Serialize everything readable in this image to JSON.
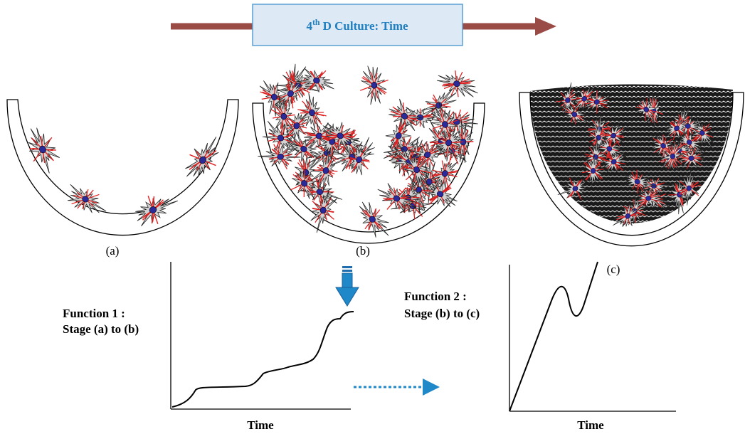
{
  "banner": {
    "lead": "4",
    "superscript": "th",
    "text": "D Culture: Time"
  },
  "stages": [
    {
      "label": "(a)"
    },
    {
      "label": "(b)"
    },
    {
      "label": "(c)"
    }
  ],
  "functions": [
    {
      "name": "Function 1 :",
      "stages": "Stage (a) to (b)",
      "x_label": "Time"
    },
    {
      "name": "Function 2 :",
      "stages": "Stage (b) to (c)",
      "x_label": "Time"
    }
  ]
}
